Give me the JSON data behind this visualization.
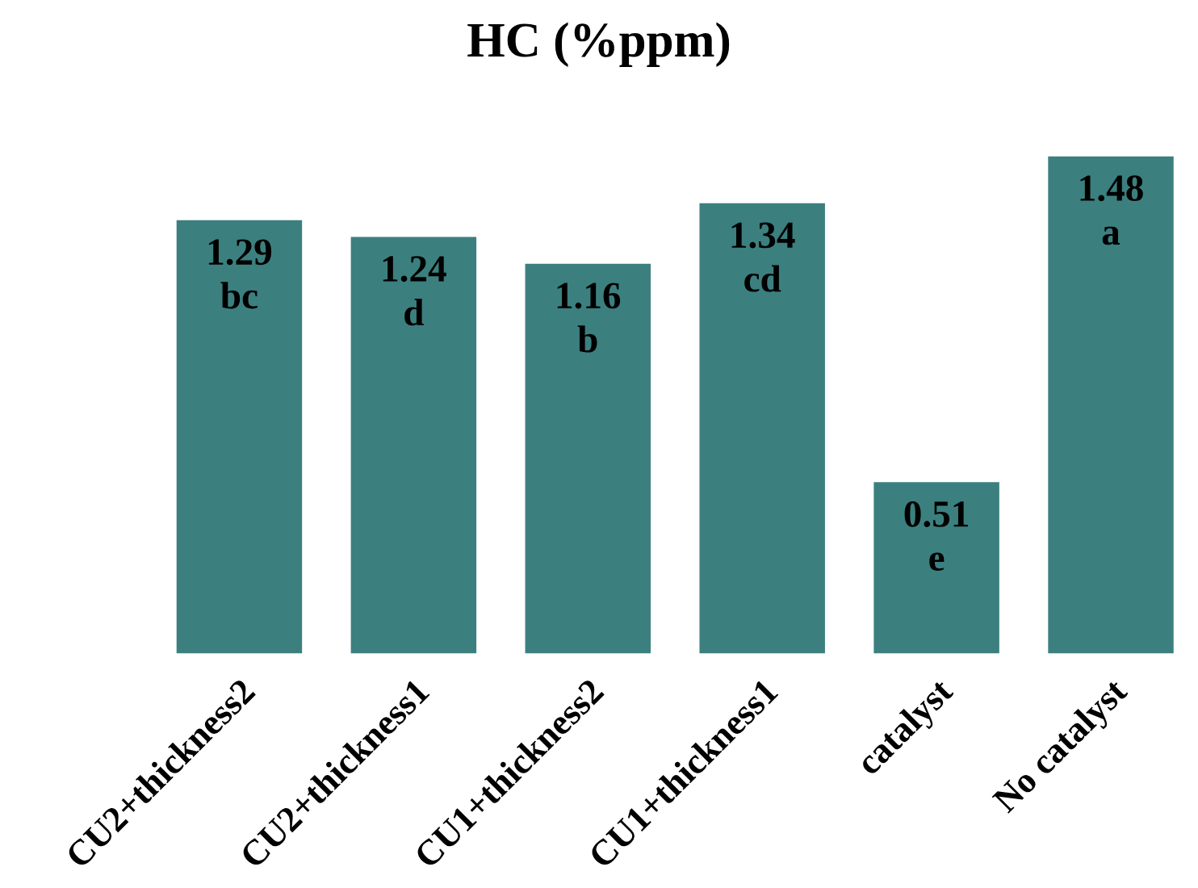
{
  "chart_data": {
    "type": "bar",
    "title": "HC (%ppm)",
    "categories": [
      "CU2+thickness2",
      "CU2+thickness1",
      "CU1+thickness2",
      "CU1+thickness1",
      "catalyst",
      "No catalyst"
    ],
    "values": [
      1.29,
      1.24,
      1.16,
      1.34,
      0.51,
      1.48
    ],
    "value_labels": [
      "1.29\nbc",
      "1.24\nd",
      "1.16\nb",
      "1.34\ncd",
      "0.51\ne",
      "1.48\na"
    ],
    "color": "#3c7f7f",
    "ylim": [
      0,
      1.48
    ],
    "tick_labels": "x",
    "grid": false,
    "legend": false
  }
}
